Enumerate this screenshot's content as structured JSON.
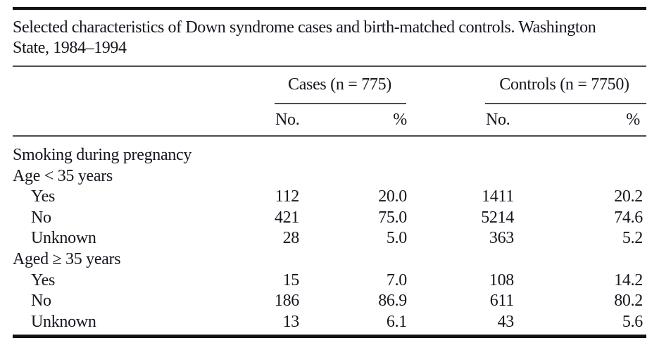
{
  "title": {
    "line1": "Selected characteristics of Down syndrome cases and birth-matched controls. Washington",
    "line2": "State, 1984–1994"
  },
  "colors": {
    "text": "#16161f",
    "thick_rule": "#121212",
    "thin_rule": "#4d4d4d",
    "background": "#ffffff"
  },
  "table": {
    "groups": [
      {
        "label": "Cases (n = 775)"
      },
      {
        "label": "Controls (n = 7750)"
      }
    ],
    "subheaders": {
      "no": "No.",
      "pct": "%"
    },
    "rows": [
      {
        "label": "Smoking during pregnancy"
      },
      {
        "label": "Age < 35 years"
      },
      {
        "label": "Yes",
        "cases_no": "112",
        "cases_pct": "20.0",
        "controls_no": "1411",
        "controls_pct": "20.2"
      },
      {
        "label": "No",
        "cases_no": "421",
        "cases_pct": "75.0",
        "controls_no": "5214",
        "controls_pct": "74.6"
      },
      {
        "label": "Unknown",
        "cases_no": "28",
        "cases_pct": "5.0",
        "controls_no": "363",
        "controls_pct": "5.2"
      },
      {
        "label": "Aged ≥ 35 years"
      },
      {
        "label": "Yes",
        "cases_no": "15",
        "cases_pct": "7.0",
        "controls_no": "108",
        "controls_pct": "14.2"
      },
      {
        "label": "No",
        "cases_no": "186",
        "cases_pct": "86.9",
        "controls_no": "611",
        "controls_pct": "80.2"
      },
      {
        "label": "Unknown",
        "cases_no": "13",
        "cases_pct": "6.1",
        "controls_no": "43",
        "controls_pct": "5.6"
      }
    ]
  }
}
